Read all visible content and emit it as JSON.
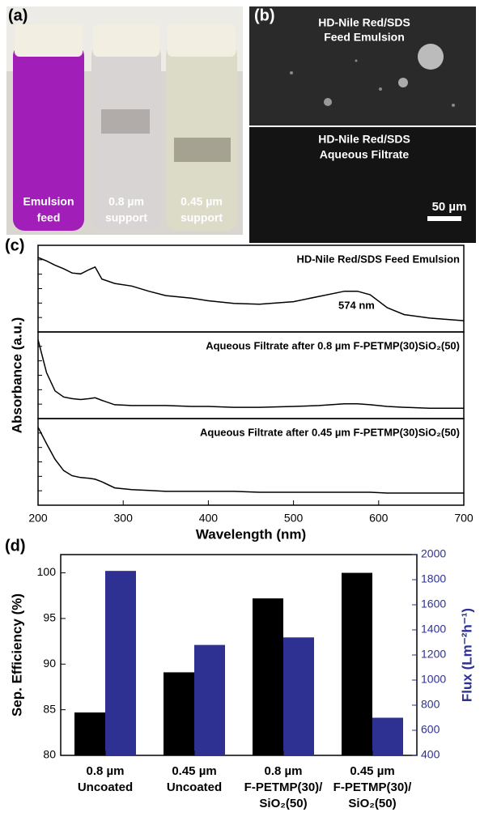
{
  "panels": {
    "a": {
      "label": "(a)",
      "vials": [
        [
          "Emulsion",
          "feed"
        ],
        [
          "0.8 µm",
          "support"
        ],
        [
          "0.45 µm",
          "support"
        ]
      ]
    },
    "b": {
      "label": "(b)",
      "top": [
        "HD-Nile Red/SDS",
        "Feed Emulsion"
      ],
      "bottom": [
        "HD-Nile Red/SDS",
        "Aqueous Filtrate"
      ],
      "scale": "50 µm"
    },
    "c": {
      "label": "(c)"
    },
    "d": {
      "label": "(d)"
    }
  },
  "chart_data": [
    {
      "type": "line",
      "xlabel": "Wavelength (nm)",
      "ylabel": "Absorbance (a.u.)",
      "xlim": [
        200,
        700
      ],
      "xticks": [
        200,
        300,
        400,
        500,
        600,
        700
      ],
      "ylim": [
        0,
        1
      ],
      "x": [
        200,
        210,
        220,
        230,
        240,
        250,
        260,
        267,
        275,
        290,
        310,
        330,
        350,
        380,
        400,
        430,
        460,
        500,
        530,
        560,
        575,
        590,
        610,
        630,
        660,
        700
      ],
      "annotation": "574 nm",
      "series": [
        {
          "name": "HD-Nile Red/SDS Feed Emulsion",
          "color": "#000000",
          "values": [
            0.86,
            0.82,
            0.77,
            0.73,
            0.68,
            0.67,
            0.72,
            0.75,
            0.61,
            0.56,
            0.53,
            0.47,
            0.42,
            0.39,
            0.36,
            0.33,
            0.32,
            0.35,
            0.41,
            0.47,
            0.47,
            0.43,
            0.28,
            0.2,
            0.16,
            0.13
          ]
        },
        {
          "name": "Aqueous Filtrate after 0.8 µm F-PETMP(30)SiO₂(50)",
          "color": "#000000",
          "values": [
            0.91,
            0.53,
            0.32,
            0.25,
            0.23,
            0.22,
            0.23,
            0.24,
            0.21,
            0.16,
            0.15,
            0.15,
            0.15,
            0.14,
            0.14,
            0.13,
            0.13,
            0.14,
            0.15,
            0.17,
            0.17,
            0.16,
            0.14,
            0.13,
            0.12,
            0.12
          ]
        },
        {
          "name": "Aqueous Filtrate after 0.45 µm F-PETMP(30)SiO₂(50)",
          "color": "#000000",
          "values": [
            0.9,
            0.71,
            0.53,
            0.4,
            0.34,
            0.32,
            0.31,
            0.3,
            0.27,
            0.2,
            0.18,
            0.17,
            0.16,
            0.16,
            0.16,
            0.16,
            0.15,
            0.15,
            0.15,
            0.15,
            0.15,
            0.15,
            0.14,
            0.14,
            0.14,
            0.14
          ]
        }
      ]
    },
    {
      "type": "bar",
      "ylabel": "Sep. Efficiency (%)",
      "y2label": "Flux (Lm⁻²h⁻¹)",
      "categories": [
        [
          "0.8 µm",
          "Uncoated"
        ],
        [
          "0.45 µm",
          "Uncoated"
        ],
        [
          "0.8 µm",
          "F-PETMP(30)/",
          "SiO₂(50)"
        ],
        [
          "0.45 µm",
          "F-PETMP(30)/",
          "SiO₂(50)"
        ]
      ],
      "ylim": [
        80,
        102
      ],
      "yticks": [
        80,
        85,
        90,
        95,
        100
      ],
      "y2lim": [
        400,
        2000
      ],
      "y2ticks": [
        400,
        600,
        800,
        1000,
        1200,
        1400,
        1600,
        1800,
        2000
      ],
      "series": [
        {
          "color": "#000000",
          "values": [
            84.7,
            89.1,
            97.2,
            100
          ]
        },
        {
          "color": "#2e3192",
          "axis": "y2",
          "values": [
            1870,
            1280,
            1340,
            700
          ]
        }
      ]
    }
  ]
}
